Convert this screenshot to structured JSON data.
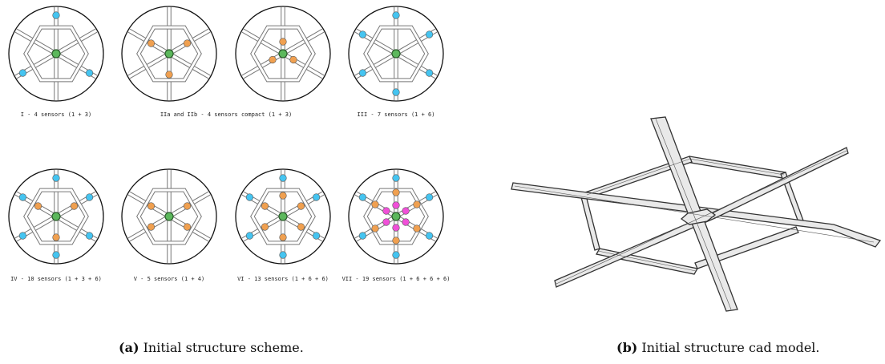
{
  "colors": {
    "center": "#5cb85c",
    "inner": "#f0a050",
    "outer": "#45c4f0",
    "core": "#f050d8",
    "frame": "#777777",
    "circle": "#111111"
  },
  "configs": [
    {
      "label": "I - 4 sensors (1 + 3)",
      "sensors": [
        {
          "t": "outer",
          "a": 0,
          "r": 48
        },
        {
          "t": "outer",
          "a": 120,
          "r": 48
        },
        {
          "t": "outer",
          "a": 240,
          "r": 48
        }
      ]
    },
    {
      "label": "IIa and IIb - 4 sensors compact (1 + 3)",
      "sensors": [
        {
          "t": "inner",
          "a": 60,
          "r": 26
        },
        {
          "t": "inner",
          "a": 180,
          "r": 26
        },
        {
          "t": "inner",
          "a": 300,
          "r": 26
        }
      ]
    },
    {
      "label": "",
      "sensors": [
        {
          "t": "inner",
          "a": 0,
          "r": 15
        },
        {
          "t": "inner",
          "a": 120,
          "r": 15
        },
        {
          "t": "inner",
          "a": 240,
          "r": 15
        }
      ]
    },
    {
      "label": "III - 7 sensors (1 + 6)",
      "sensors": [
        {
          "t": "outer",
          "a": 0,
          "r": 48
        },
        {
          "t": "outer",
          "a": 60,
          "r": 48
        },
        {
          "t": "outer",
          "a": 120,
          "r": 48
        },
        {
          "t": "outer",
          "a": 180,
          "r": 48
        },
        {
          "t": "outer",
          "a": 240,
          "r": 48
        },
        {
          "t": "outer",
          "a": 300,
          "r": 48
        }
      ]
    },
    {
      "label": "IV - 10 sensors (1 + 3 + 6)",
      "sensors": [
        {
          "t": "outer",
          "a": 0,
          "r": 48
        },
        {
          "t": "outer",
          "a": 60,
          "r": 48
        },
        {
          "t": "outer",
          "a": 120,
          "r": 48
        },
        {
          "t": "outer",
          "a": 180,
          "r": 48
        },
        {
          "t": "outer",
          "a": 240,
          "r": 48
        },
        {
          "t": "outer",
          "a": 300,
          "r": 48
        },
        {
          "t": "inner",
          "a": 60,
          "r": 26
        },
        {
          "t": "inner",
          "a": 180,
          "r": 26
        },
        {
          "t": "inner",
          "a": 300,
          "r": 26
        }
      ]
    },
    {
      "label": "V - 5 sensors (1 + 4)",
      "sensors": [
        {
          "t": "inner",
          "a": 60,
          "r": 26
        },
        {
          "t": "inner",
          "a": 120,
          "r": 26
        },
        {
          "t": "inner",
          "a": 240,
          "r": 26
        },
        {
          "t": "inner",
          "a": 300,
          "r": 26
        }
      ]
    },
    {
      "label": "VI - 13 sensors (1 + 6 + 6)",
      "sensors": [
        {
          "t": "outer",
          "a": 0,
          "r": 48
        },
        {
          "t": "outer",
          "a": 60,
          "r": 48
        },
        {
          "t": "outer",
          "a": 120,
          "r": 48
        },
        {
          "t": "outer",
          "a": 180,
          "r": 48
        },
        {
          "t": "outer",
          "a": 240,
          "r": 48
        },
        {
          "t": "outer",
          "a": 300,
          "r": 48
        },
        {
          "t": "inner",
          "a": 0,
          "r": 26
        },
        {
          "t": "inner",
          "a": 60,
          "r": 26
        },
        {
          "t": "inner",
          "a": 120,
          "r": 26
        },
        {
          "t": "inner",
          "a": 180,
          "r": 26
        },
        {
          "t": "inner",
          "a": 240,
          "r": 26
        },
        {
          "t": "inner",
          "a": 300,
          "r": 26
        }
      ]
    },
    {
      "label": "VII - 19 sensors (1 + 6 + 6 + 6)",
      "sensors": [
        {
          "t": "outer",
          "a": 0,
          "r": 48
        },
        {
          "t": "outer",
          "a": 60,
          "r": 48
        },
        {
          "t": "outer",
          "a": 120,
          "r": 48
        },
        {
          "t": "outer",
          "a": 180,
          "r": 48
        },
        {
          "t": "outer",
          "a": 240,
          "r": 48
        },
        {
          "t": "outer",
          "a": 300,
          "r": 48
        },
        {
          "t": "inner",
          "a": 0,
          "r": 30
        },
        {
          "t": "inner",
          "a": 60,
          "r": 30
        },
        {
          "t": "inner",
          "a": 120,
          "r": 30
        },
        {
          "t": "inner",
          "a": 180,
          "r": 30
        },
        {
          "t": "inner",
          "a": 240,
          "r": 30
        },
        {
          "t": "inner",
          "a": 300,
          "r": 30
        },
        {
          "t": "core",
          "a": 0,
          "r": 14
        },
        {
          "t": "core",
          "a": 60,
          "r": 14
        },
        {
          "t": "core",
          "a": 120,
          "r": 14
        },
        {
          "t": "core",
          "a": 180,
          "r": 14
        },
        {
          "t": "core",
          "a": 240,
          "r": 14
        },
        {
          "t": "core",
          "a": 300,
          "r": 14
        }
      ]
    }
  ],
  "captions": {
    "a_tag": "(a)",
    "a_text": " Initial structure scheme.",
    "b_tag": "(b)",
    "b_text": " Initial structure cad model."
  }
}
